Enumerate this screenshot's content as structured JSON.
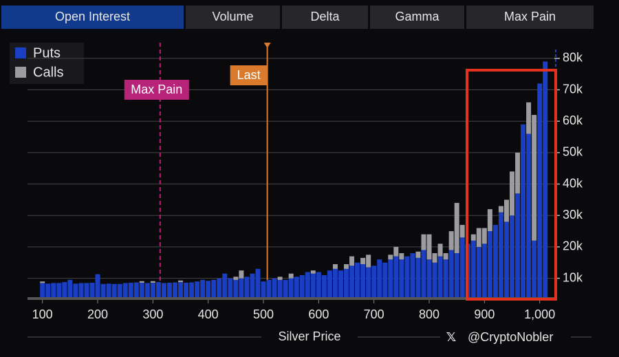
{
  "tabs": [
    "Open Interest",
    "Volume",
    "Delta",
    "Gamma",
    "Max Pain"
  ],
  "watermark": "@CryptoNobler",
  "chart_data": {
    "type": "bar",
    "stacked": true,
    "xlabel": "Silver Price",
    "x": [
      100,
      110,
      120,
      130,
      140,
      150,
      160,
      170,
      180,
      190,
      200,
      210,
      220,
      230,
      240,
      250,
      260,
      270,
      280,
      290,
      300,
      310,
      320,
      330,
      340,
      350,
      360,
      370,
      380,
      390,
      400,
      410,
      420,
      430,
      440,
      450,
      460,
      470,
      480,
      490,
      500,
      510,
      520,
      530,
      540,
      550,
      560,
      570,
      580,
      590,
      600,
      610,
      620,
      630,
      640,
      650,
      660,
      670,
      680,
      690,
      700,
      710,
      720,
      730,
      740,
      750,
      760,
      770,
      780,
      790,
      800,
      810,
      820,
      830,
      840,
      850,
      860,
      870,
      880,
      890,
      900,
      910,
      920,
      930,
      940,
      950,
      960,
      970,
      980,
      990,
      1000,
      1010
    ],
    "series": [
      {
        "name": "Puts",
        "color": "#1a3fc4",
        "values": [
          4500,
          4300,
          4500,
          4500,
          4800,
          5500,
          4300,
          4500,
          4500,
          4600,
          7300,
          4200,
          4300,
          4200,
          4200,
          4500,
          4600,
          4700,
          4600,
          4500,
          4600,
          4800,
          4500,
          4600,
          4700,
          4800,
          4600,
          4700,
          5000,
          5500,
          5200,
          5500,
          6000,
          7500,
          6000,
          5500,
          6000,
          6500,
          7500,
          9000,
          5000,
          5500,
          6000,
          5500,
          5500,
          6000,
          6500,
          7000,
          8000,
          7500,
          8000,
          7000,
          8500,
          9000,
          8500,
          9000,
          10000,
          11000,
          10500,
          9500,
          10000,
          12000,
          11000,
          12000,
          13000,
          12000,
          13000,
          14000,
          12500,
          15000,
          12000,
          11000,
          13000,
          12000,
          15000,
          14000,
          19000,
          17000,
          18000,
          16000,
          17000,
          21000,
          23000,
          27000,
          24000,
          26000,
          33000,
          55000,
          52000,
          18000,
          68000,
          75000
        ]
      },
      {
        "name": "Calls",
        "color": "#9c9ca0",
        "values": [
          500,
          0,
          0,
          0,
          0,
          0,
          0,
          0,
          0,
          0,
          0,
          0,
          0,
          0,
          0,
          0,
          0,
          0,
          500,
          0,
          500,
          0,
          0,
          0,
          0,
          500,
          0,
          0,
          0,
          0,
          0,
          0,
          0,
          0,
          0,
          1000,
          2500,
          0,
          0,
          0,
          0,
          0,
          0,
          1000,
          0,
          1500,
          0,
          0,
          0,
          1000,
          0,
          0,
          0,
          1500,
          0,
          1500,
          3000,
          0,
          2000,
          4000,
          0,
          0,
          0,
          1500,
          3000,
          2000,
          0,
          0,
          2000,
          5000,
          8000,
          3000,
          4000,
          2000,
          6000,
          16000,
          4000,
          0,
          2000,
          6000,
          5000,
          7000,
          0,
          2000,
          7000,
          14000,
          13000,
          0,
          10000,
          40000,
          0,
          0
        ]
      }
    ],
    "xlim": [
      73,
      1034
    ],
    "xticks": [
      100,
      200,
      300,
      400,
      500,
      600,
      700,
      800,
      900,
      {
        "value": 1000,
        "label": "1,000"
      }
    ],
    "ylim": [
      4000,
      85000
    ],
    "yticks": [
      {
        "value": 10000,
        "label": "10k"
      },
      {
        "value": 20000,
        "label": "20k"
      },
      {
        "value": 30000,
        "label": "30k"
      },
      {
        "value": 40000,
        "label": "40k"
      },
      {
        "value": 50000,
        "label": "50k"
      },
      {
        "value": 60000,
        "label": "60k"
      },
      {
        "value": 70000,
        "label": "70k"
      },
      {
        "value": 80000,
        "label": "80k"
      }
    ],
    "grid": true,
    "legend": "top-left",
    "markers": [
      {
        "label": "Max Pain",
        "x": 313,
        "color": "#b8237a",
        "dashed": true
      },
      {
        "label": "Last",
        "x": 507,
        "color": "#d97a2c",
        "dashed": false
      }
    ]
  }
}
